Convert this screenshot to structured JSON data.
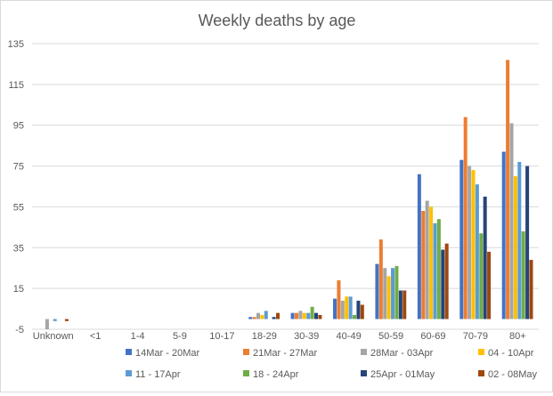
{
  "chart_data": {
    "type": "bar",
    "title": "Weekly deaths by age",
    "xlabel": "",
    "ylabel": "",
    "ylim": [
      -5,
      135
    ],
    "yticks": [
      -5,
      15,
      35,
      55,
      75,
      95,
      115,
      135
    ],
    "grid": true,
    "legend_position": "bottom",
    "categories": [
      "Unknown",
      "<1",
      "1-4",
      "5-9",
      "10-17",
      "18-29",
      "30-39",
      "40-49",
      "50-59",
      "60-69",
      "70-79",
      "80+"
    ],
    "series": [
      {
        "name": "14Mar - 20Mar",
        "color": "#4472C4",
        "values": [
          0,
          0,
          0,
          0,
          0,
          1,
          3,
          10,
          27,
          71,
          78,
          82
        ]
      },
      {
        "name": "21Mar - 27Mar",
        "color": "#ED7D31",
        "values": [
          0,
          0,
          0,
          0,
          0,
          1,
          3,
          19,
          39,
          53,
          99,
          127
        ]
      },
      {
        "name": "28Mar - 03Apr",
        "color": "#A5A5A5",
        "values": [
          -5,
          0,
          0,
          0,
          0,
          3,
          4,
          9,
          25,
          58,
          75,
          96
        ]
      },
      {
        "name": "04 - 10Apr",
        "color": "#FFC000",
        "values": [
          0,
          0,
          0,
          0,
          0,
          2,
          3,
          11,
          21,
          55,
          73,
          70
        ]
      },
      {
        "name": "11 - 17Apr",
        "color": "#5B9BD5",
        "values": [
          -1,
          0,
          0,
          0,
          0,
          4,
          3,
          11,
          25,
          47,
          66,
          77
        ]
      },
      {
        "name": "18 - 24Apr",
        "color": "#70AD47",
        "values": [
          0,
          0,
          0,
          0,
          0,
          0,
          6,
          2,
          26,
          49,
          42,
          43
        ]
      },
      {
        "name": "25Apr - 01May",
        "color": "#264478",
        "values": [
          0,
          0,
          0,
          0,
          0,
          1,
          3,
          9,
          14,
          34,
          60,
          75
        ]
      },
      {
        "name": "02 - 08May",
        "color": "#9E480E",
        "values": [
          -1,
          0,
          0,
          0,
          0,
          3,
          2,
          7,
          14,
          37,
          33,
          29
        ]
      }
    ]
  }
}
